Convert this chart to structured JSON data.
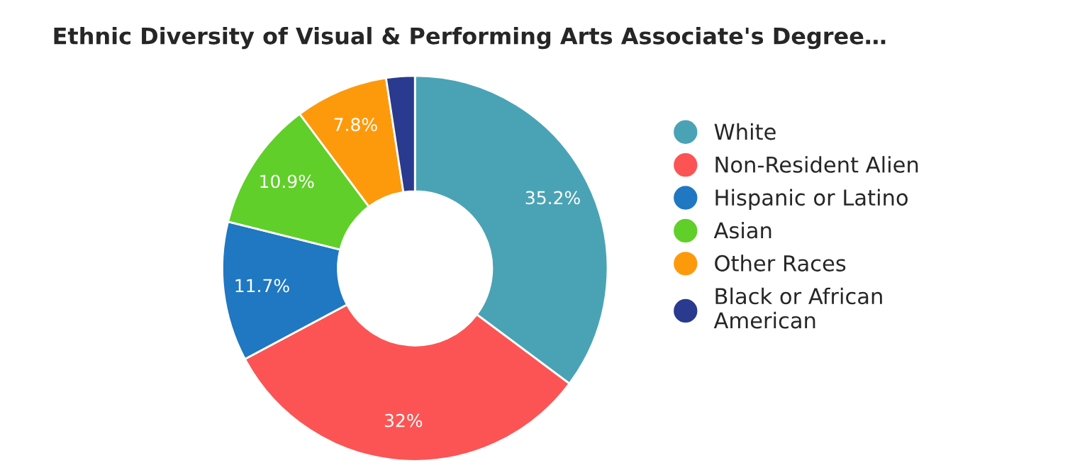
{
  "chart_data": {
    "type": "donut",
    "title": "Ethnic Diversity of Visual & Performing Arts Associate's Degree…",
    "categories": [
      "White",
      "Non-Resident Alien",
      "Hispanic or Latino",
      "Asian",
      "Other Races",
      "Black or African\nAmerican"
    ],
    "values": [
      35.2,
      32,
      11.7,
      10.9,
      7.8,
      2.4
    ],
    "value_labels": [
      "35.2%",
      "32%",
      "11.7%",
      "10.9%",
      "7.8%",
      null
    ],
    "colors": [
      "#4aa3b5",
      "#fc5454",
      "#1f78c1",
      "#60cf2a",
      "#fd9a0c",
      "#2a3a8f"
    ],
    "legend": "right"
  }
}
